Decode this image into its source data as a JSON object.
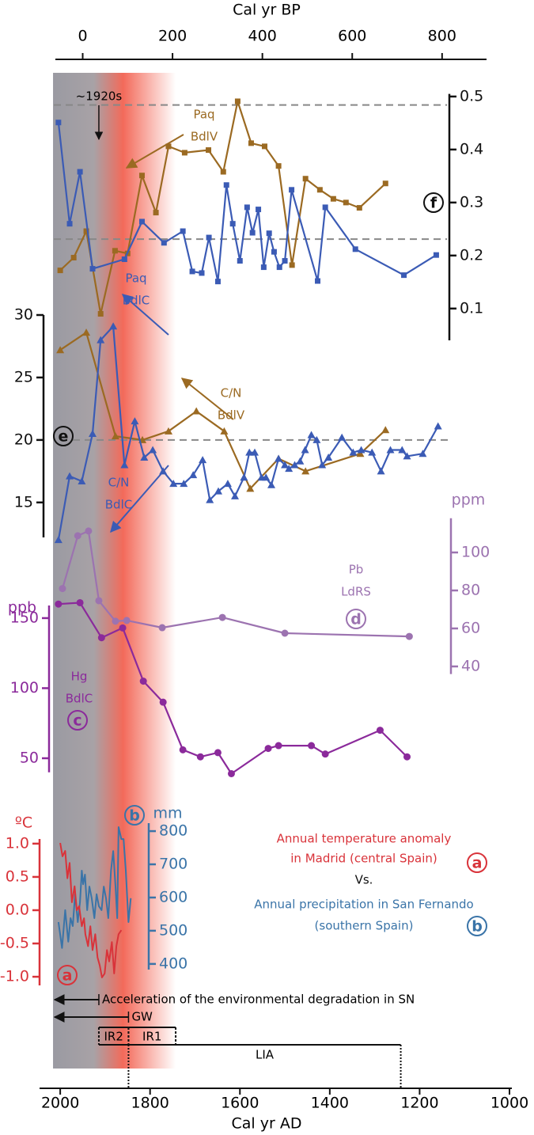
{
  "chart_data": {
    "type": "line",
    "xlabel": "Cal yr AD",
    "xlim": [
      2046,
      1000
    ],
    "xticks": [
      2000,
      1800,
      1600,
      1400,
      1200,
      1000
    ],
    "x2label": "Cal yr BP",
    "x2lim": [
      -96,
      950
    ],
    "x2ticks": [
      0,
      200,
      400,
      600,
      800
    ],
    "shading": {
      "start": 2016,
      "gray_end": 1925,
      "red_end": 1860,
      "fade_end": 1743
    },
    "period_marker": {
      "text": "~1920s",
      "year": 1914
    },
    "arrows": [
      {
        "text": "Acceleration of the environmental degradation in SN",
        "from": 1914,
        "to": 2016
      },
      {
        "text": "GW",
        "from": 1848,
        "to": 2016
      }
    ],
    "periods": [
      {
        "label": "IR2",
        "start": 1914,
        "end": 1848
      },
      {
        "label": "IR1",
        "start": 1848,
        "end": 1743
      },
      {
        "label": "LIA",
        "start": 1848,
        "end": 1242
      }
    ],
    "annotations": [
      {
        "text": "Annual temperature anomaly",
        "color": "#d9333a"
      },
      {
        "text": "in Madrid (central Spain)",
        "color": "#d9333a"
      },
      {
        "text": "Vs.",
        "color": "#111111"
      },
      {
        "text": "Annual precipitation in San Fernando",
        "color": "#3a74a8"
      },
      {
        "text": "(southern Spain)",
        "color": "#3a74a8"
      }
    ],
    "panels": [
      {
        "type": "line",
        "label": "f",
        "axis_color": "#111111",
        "ylim": [
          0.04,
          0.505
        ],
        "yticks": [
          0.1,
          0.2,
          0.3,
          0.4,
          0.5
        ],
        "reference_lines": [
          0.484,
          0.231
        ],
        "series": [
          {
            "label_lines": [
              "Paq",
              "BdlV"
            ],
            "color": "#9b6a22",
            "marker": "square",
            "x": [
              2000,
              1970,
              1942,
              1910,
              1878,
              1850,
              1818,
              1787,
              1759,
              1723,
              1670,
              1637,
              1605,
              1575,
              1545,
              1514,
              1484,
              1454,
              1422,
              1392,
              1364,
              1334,
              1276
            ],
            "values": [
              0.172,
              0.196,
              0.246,
              0.09,
              0.209,
              0.204,
              0.351,
              0.281,
              0.406,
              0.394,
              0.399,
              0.358,
              0.491,
              0.412,
              0.406,
              0.369,
              0.182,
              0.345,
              0.324,
              0.307,
              0.3,
              0.29,
              0.336
            ]
          },
          {
            "label_lines": [
              "Paq",
              "BdlC"
            ],
            "color": "#3b5bb5",
            "marker": "square",
            "x": [
              2004,
              1979,
              1956,
              1928,
              1857,
              1818,
              1769,
              1727,
              1706,
              1685,
              1669,
              1649,
              1630,
              1616,
              1600,
              1584,
              1572,
              1559,
              1547,
              1535,
              1524,
              1512,
              1500,
              1485,
              1427,
              1410,
              1343,
              1235,
              1163
            ],
            "values": [
              0.451,
              0.26,
              0.358,
              0.175,
              0.193,
              0.264,
              0.224,
              0.246,
              0.17,
              0.167,
              0.234,
              0.151,
              0.333,
              0.26,
              0.19,
              0.291,
              0.243,
              0.287,
              0.178,
              0.242,
              0.207,
              0.178,
              0.19,
              0.324,
              0.152,
              0.291,
              0.212,
              0.163,
              0.201
            ]
          }
        ]
      },
      {
        "type": "line",
        "label": "e",
        "axis_color": "#111111",
        "ylim": [
          12.2,
          30
        ],
        "yticks": [
          15,
          20,
          25,
          30
        ],
        "reference_lines": [
          20
        ],
        "series": [
          {
            "label_lines": [
              "C/N",
              "BdlV"
            ],
            "color": "#9b6a22",
            "marker": "triangle",
            "x": [
              2000,
              1942,
              1877,
              1817,
              1759,
              1697,
              1635,
              1577,
              1514,
              1454,
              1332,
              1276
            ],
            "values": [
              27.2,
              28.6,
              20.3,
              20.0,
              20.7,
              22.3,
              20.7,
              16.1,
              18.5,
              17.5,
              18.9,
              20.8
            ]
          },
          {
            "label_lines": [
              "C/N",
              "BdlC"
            ],
            "color": "#3b5bb5",
            "marker": "triangle",
            "x": [
              2004,
              1979,
              1952,
              1928,
              1910,
              1882,
              1857,
              1834,
              1813,
              1794,
              1771,
              1748,
              1725,
              1704,
              1683,
              1667,
              1648,
              1627,
              1611,
              1591,
              1579,
              1567,
              1552,
              1542,
              1530,
              1514,
              1500,
              1491,
              1478,
              1466,
              1455,
              1441,
              1429,
              1417,
              1403,
              1373,
              1348,
              1330,
              1306,
              1286,
              1265,
              1239,
              1228,
              1193,
              1159
            ],
            "values": [
              12.0,
              17.1,
              16.7,
              20.5,
              28.0,
              29.1,
              18.0,
              21.5,
              18.6,
              19.2,
              17.5,
              16.5,
              16.5,
              17.2,
              18.4,
              15.2,
              15.9,
              16.5,
              15.5,
              17.0,
              19.0,
              19.0,
              17.0,
              17.0,
              16.4,
              18.5,
              18.0,
              17.7,
              18.0,
              18.3,
              19.2,
              20.4,
              20.0,
              18.0,
              18.6,
              20.2,
              19.0,
              19.2,
              19.0,
              17.5,
              19.2,
              19.2,
              18.7,
              18.9,
              21.1
            ]
          }
        ]
      },
      {
        "type": "line",
        "label": "d",
        "unit": "ppm",
        "axis_color": "#9c73b0",
        "ylim": [
          36,
          118
        ],
        "yticks": [
          40,
          60,
          80,
          100
        ],
        "series": [
          {
            "label_lines": [
              "Pb",
              "LdRS"
            ],
            "color": "#9c73b0",
            "marker": "circle",
            "x": [
              1995,
              1961,
              1937,
              1914,
              1877,
              1852,
              1773,
              1639,
              1500,
              1223
            ],
            "values": [
              81,
              108.8,
              111.3,
              74.6,
              63.8,
              64.2,
              60.4,
              65.8,
              57.5,
              55.8
            ]
          }
        ]
      },
      {
        "type": "line",
        "label": "c",
        "unit": "ppb",
        "axis_color": "#8b2a9b",
        "ylim": [
          40,
          159
        ],
        "yticks": [
          50,
          100,
          150
        ],
        "series": [
          {
            "label_lines": [
              "Hg",
              "BdlC"
            ],
            "color": "#8b2a9b",
            "marker": "circle",
            "x": [
              2004,
              1956,
              1908,
              1861,
              1815,
              1771,
              1727,
              1688,
              1649,
              1619,
              1537,
              1514,
              1441,
              1410,
              1288,
              1228
            ],
            "values": [
              160,
              161,
              136,
              143,
              105,
              90,
              56,
              51,
              54,
              39,
              57,
              59,
              59,
              53,
              70,
              51
            ]
          }
        ]
      },
      {
        "type": "line",
        "label": "b",
        "unit": "mm",
        "axis_color": "#3a74a8",
        "ylim": [
          383,
          824
        ],
        "yticks": [
          400,
          500,
          600,
          700,
          800
        ],
        "series": [
          {
            "color": "#3a74a8",
            "marker": "none",
            "x": [
              2004,
              1996,
              1989,
              1982,
              1977,
              1972,
              1967,
              1961,
              1956,
              1952,
              1949,
              1945,
              1940,
              1935,
              1930,
              1924,
              1919,
              1914,
              1908,
              1903,
              1898,
              1893,
              1887,
              1882,
              1877,
              1873,
              1870,
              1864,
              1859,
              1854,
              1848,
              1843
            ],
            "values": [
              526,
              448,
              562,
              467,
              538,
              514,
              610,
              526,
              586,
              681,
              640,
              669,
              562,
              633,
              598,
              538,
              610,
              574,
              562,
              633,
              598,
              538,
              681,
              740,
              633,
              538,
              812,
              776,
              776,
              681,
              526,
              598
            ]
          }
        ]
      },
      {
        "type": "line",
        "label": "a",
        "unit": "ºC",
        "axis_color": "#d9333a",
        "ylim": [
          -1.13,
          1.07
        ],
        "yticks": [
          {
            "value": -1,
            "label": "-1.0"
          },
          -0.5,
          {
            "value": 0,
            "label": "0.0"
          },
          0.5,
          {
            "value": 1,
            "label": "1.0"
          }
        ],
        "series": [
          {
            "color": "#d9333a",
            "marker": "none",
            "x": [
              2000,
              1995,
              1989,
              1984,
              1979,
              1974,
              1968,
              1963,
              1958,
              1952,
              1947,
              1944,
              1938,
              1933,
              1928,
              1922,
              1917,
              1912,
              1907,
              1901,
              1896,
              1891,
              1885,
              1880,
              1875,
              1870,
              1864
            ],
            "values": [
              1.01,
              0.81,
              0.89,
              0.48,
              0.71,
              0.12,
              0.36,
              0.0,
              0.06,
              -0.24,
              -0.12,
              -0.36,
              -0.54,
              -0.24,
              -0.6,
              -0.36,
              -0.71,
              -0.83,
              -1.01,
              -0.95,
              -0.6,
              -0.77,
              -0.48,
              -0.95,
              -0.54,
              -0.36,
              -0.3
            ]
          }
        ]
      }
    ]
  }
}
